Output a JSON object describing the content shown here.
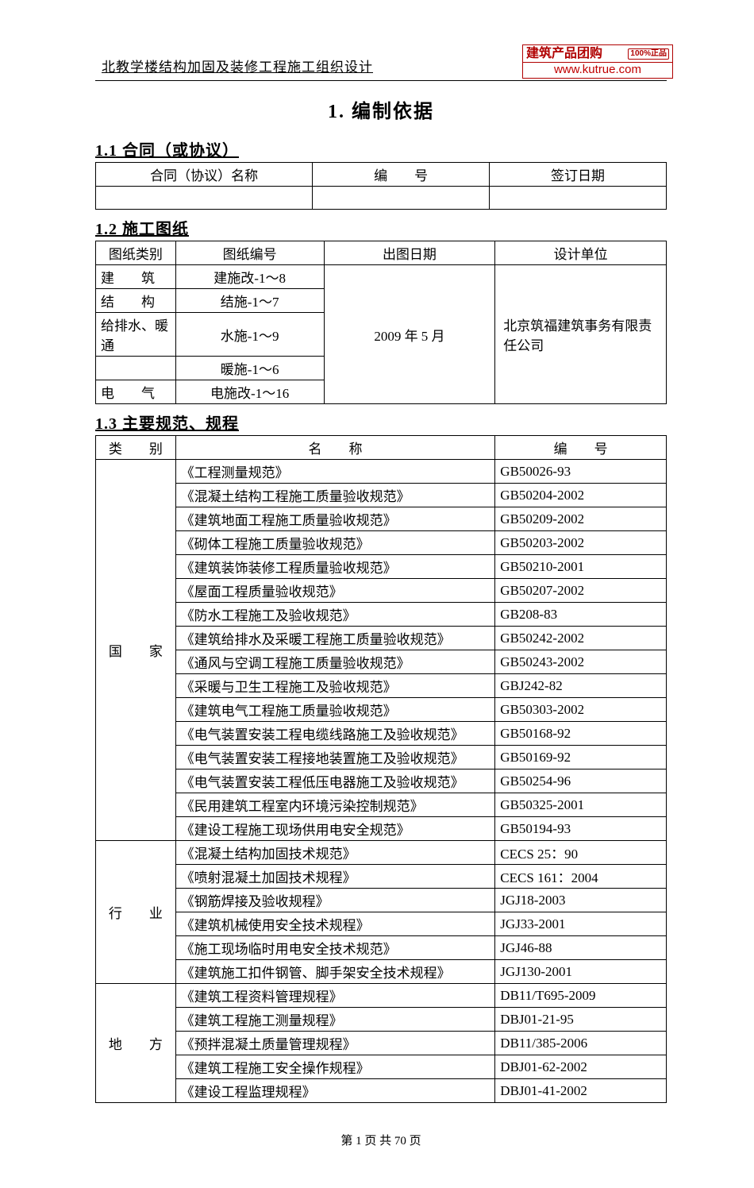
{
  "header": {
    "doc_title": "北教学楼结构加固及装修工程施工组织设计",
    "stamp_top": "建筑产品团购",
    "stamp_badge": "100%正品",
    "stamp_url": "www.kutrue.com"
  },
  "title": "1. 编制依据",
  "section11": {
    "heading": "1.1 合同（或协议）",
    "cols": [
      "合同（协议）名称",
      "编　　号",
      "签订日期"
    ]
  },
  "section12": {
    "heading": "1.2 施工图纸",
    "cols": [
      "图纸类别",
      "图纸编号",
      "出图日期",
      "设计单位"
    ],
    "rows": [
      {
        "cat": "建　　筑",
        "num": "建施改-1～8"
      },
      {
        "cat": "结　　构",
        "num": "结施-1～7"
      },
      {
        "cat": "给排水、暖通",
        "num": "水施-1～9"
      },
      {
        "cat": "",
        "num": "暖施-1～6"
      },
      {
        "cat": "电　　气",
        "num": "电施改-1～16"
      }
    ],
    "date": "2009 年 5 月",
    "designer": "北京筑福建筑事务有限责任公司"
  },
  "section13": {
    "heading": "1.3 主要规范、规程",
    "cols": [
      "类　　别",
      "名　　称",
      "编　　号"
    ],
    "groups": [
      {
        "cat": "国　　家",
        "items": [
          {
            "n": "《工程测量规范》",
            "c": "GB50026-93"
          },
          {
            "n": "《混凝土结构工程施工质量验收规范》",
            "c": "GB50204-2002"
          },
          {
            "n": "《建筑地面工程施工质量验收规范》",
            "c": "GB50209-2002"
          },
          {
            "n": "《砌体工程施工质量验收规范》",
            "c": "GB50203-2002"
          },
          {
            "n": "《建筑装饰装修工程质量验收规范》",
            "c": "GB50210-2001"
          },
          {
            "n": "《屋面工程质量验收规范》",
            "c": "GB50207-2002"
          },
          {
            "n": "《防水工程施工及验收规范》",
            "c": "GB208-83"
          },
          {
            "n": "《建筑给排水及采暖工程施工质量验收规范》",
            "c": "GB50242-2002"
          },
          {
            "n": "《通风与空调工程施工质量验收规范》",
            "c": "GB50243-2002"
          },
          {
            "n": "《采暖与卫生工程施工及验收规范》",
            "c": "GBJ242-82"
          },
          {
            "n": "《建筑电气工程施工质量验收规范》",
            "c": "GB50303-2002"
          },
          {
            "n": "《电气装置安装工程电缆线路施工及验收规范》",
            "c": "GB50168-92"
          },
          {
            "n": "《电气装置安装工程接地装置施工及验收规范》",
            "c": "GB50169-92"
          },
          {
            "n": "《电气装置安装工程低压电器施工及验收规范》",
            "c": "GB50254-96"
          },
          {
            "n": "《民用建筑工程室内环境污染控制规范》",
            "c": "GB50325-2001"
          },
          {
            "n": "《建设工程施工现场供用电安全规范》",
            "c": "GB50194-93"
          }
        ]
      },
      {
        "cat": "行　　业",
        "items": [
          {
            "n": "《混凝土结构加固技术规范》",
            "c": "CECS 25：90"
          },
          {
            "n": "《喷射混凝土加固技术规程》",
            "c": "CECS 161：2004"
          },
          {
            "n": "《钢筋焊接及验收规程》",
            "c": "JGJ18-2003"
          },
          {
            "n": "《建筑机械使用安全技术规程》",
            "c": "JGJ33-2001"
          },
          {
            "n": "《施工现场临时用电安全技术规范》",
            "c": "JGJ46-88"
          },
          {
            "n": "《建筑施工扣件钢管、脚手架安全技术规程》",
            "c": "JGJ130-2001"
          }
        ]
      },
      {
        "cat": "地　　方",
        "items": [
          {
            "n": "《建筑工程资料管理规程》",
            "c": "DB11/T695-2009"
          },
          {
            "n": "《建筑工程施工测量规程》",
            "c": "DBJ01-21-95"
          },
          {
            "n": "《预拌混凝土质量管理规程》",
            "c": "DB11/385-2006"
          },
          {
            "n": "《建筑工程施工安全操作规程》",
            "c": "DBJ01-62-2002"
          },
          {
            "n": "《建设工程监理规程》",
            "c": "DBJ01-41-2002"
          }
        ]
      }
    ]
  },
  "footer": "第 1 页 共 70 页"
}
